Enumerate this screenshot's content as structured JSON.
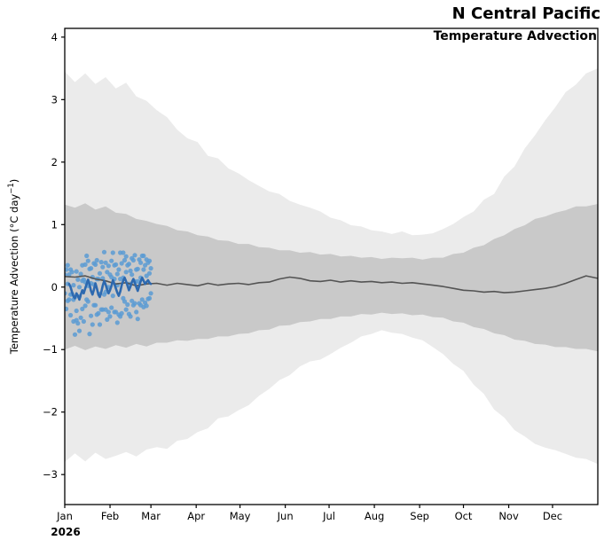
{
  "header": {
    "title": "N Central Pacific",
    "subtitle": "Temperature Advection"
  },
  "chart_data": {
    "type": "line",
    "title": "N Central Pacific",
    "subtitle": "Temperature Advection",
    "ylabel_pre": "Temperature Advection (°C day",
    "ylabel_sup": "−1",
    "ylabel_post": ")",
    "year_label": "2026",
    "x_tick_labels": [
      "Jan",
      "Feb",
      "Mar",
      "Apr",
      "May",
      "Jun",
      "Jul",
      "Aug",
      "Sep",
      "Oct",
      "Nov",
      "Dec"
    ],
    "month_start_days": [
      0,
      31,
      59,
      90,
      120,
      151,
      181,
      212,
      243,
      273,
      304,
      334
    ],
    "days_in_year": 365,
    "ylim": [
      -3.48,
      4.14
    ],
    "yticks": [
      -3,
      -2,
      -1,
      0,
      1,
      2,
      3,
      4
    ],
    "grid": false,
    "legend": "none",
    "colors": {
      "outer_band": "#ebebeb",
      "inner_band": "#c9c9c9",
      "climatology": "#545454",
      "observed": "#2d69af",
      "dots": "#5b9bd4",
      "axis": "#000000",
      "background": "#ffffff"
    },
    "band_days": [
      0,
      7,
      14,
      21,
      28,
      35,
      42,
      49,
      56,
      63,
      70,
      77,
      84,
      91,
      98,
      105,
      112,
      119,
      126,
      133,
      140,
      147,
      154,
      161,
      168,
      175,
      182,
      189,
      196,
      203,
      210,
      217,
      224,
      231,
      238,
      245,
      252,
      259,
      266,
      273,
      280,
      287,
      294,
      301,
      308,
      315,
      322,
      329,
      336,
      343,
      350,
      357,
      365
    ],
    "series": [
      {
        "name": "envelope_outer",
        "type": "band",
        "upper": [
          3.45,
          3.28,
          3.42,
          3.25,
          3.36,
          3.18,
          3.27,
          3.05,
          2.98,
          2.83,
          2.72,
          2.52,
          2.38,
          2.32,
          2.1,
          2.06,
          1.9,
          1.82,
          1.71,
          1.62,
          1.53,
          1.49,
          1.38,
          1.32,
          1.27,
          1.21,
          1.11,
          1.07,
          0.99,
          0.97,
          0.91,
          0.89,
          0.85,
          0.89,
          0.83,
          0.84,
          0.86,
          0.93,
          1.01,
          1.12,
          1.21,
          1.4,
          1.49,
          1.77,
          1.93,
          2.22,
          2.43,
          2.67,
          2.88,
          3.12,
          3.24,
          3.42,
          3.5
        ],
        "lower": [
          -2.8,
          -2.66,
          -2.79,
          -2.65,
          -2.75,
          -2.7,
          -2.64,
          -2.71,
          -2.6,
          -2.56,
          -2.59,
          -2.46,
          -2.43,
          -2.32,
          -2.26,
          -2.1,
          -2.07,
          -1.97,
          -1.89,
          -1.74,
          -1.63,
          -1.49,
          -1.41,
          -1.27,
          -1.19,
          -1.16,
          -1.07,
          -0.97,
          -0.89,
          -0.79,
          -0.75,
          -0.69,
          -0.73,
          -0.75,
          -0.81,
          -0.85,
          -0.96,
          -1.07,
          -1.23,
          -1.34,
          -1.56,
          -1.71,
          -1.96,
          -2.09,
          -2.29,
          -2.39,
          -2.51,
          -2.57,
          -2.61,
          -2.67,
          -2.73,
          -2.75,
          -2.83
        ]
      },
      {
        "name": "envelope_inner",
        "type": "band",
        "upper": [
          1.32,
          1.27,
          1.34,
          1.24,
          1.29,
          1.19,
          1.17,
          1.09,
          1.06,
          1.01,
          0.98,
          0.91,
          0.89,
          0.83,
          0.81,
          0.75,
          0.74,
          0.69,
          0.69,
          0.64,
          0.63,
          0.59,
          0.59,
          0.55,
          0.56,
          0.52,
          0.53,
          0.49,
          0.5,
          0.47,
          0.48,
          0.45,
          0.47,
          0.46,
          0.47,
          0.44,
          0.47,
          0.47,
          0.53,
          0.55,
          0.63,
          0.67,
          0.77,
          0.83,
          0.93,
          0.99,
          1.09,
          1.13,
          1.19,
          1.23,
          1.29,
          1.29,
          1.33
        ],
        "lower": [
          -1.0,
          -0.94,
          -1.01,
          -0.95,
          -0.99,
          -0.93,
          -0.97,
          -0.91,
          -0.95,
          -0.89,
          -0.89,
          -0.85,
          -0.86,
          -0.83,
          -0.83,
          -0.79,
          -0.79,
          -0.75,
          -0.74,
          -0.69,
          -0.68,
          -0.62,
          -0.61,
          -0.56,
          -0.55,
          -0.51,
          -0.51,
          -0.47,
          -0.47,
          -0.43,
          -0.44,
          -0.41,
          -0.43,
          -0.42,
          -0.45,
          -0.44,
          -0.48,
          -0.49,
          -0.55,
          -0.57,
          -0.64,
          -0.67,
          -0.74,
          -0.77,
          -0.84,
          -0.86,
          -0.91,
          -0.92,
          -0.96,
          -0.96,
          -0.99,
          -0.99,
          -1.03
        ]
      },
      {
        "name": "climatology",
        "type": "line",
        "values": [
          0.17,
          0.16,
          0.18,
          0.13,
          0.1,
          0.05,
          0.07,
          0.02,
          0.05,
          0.06,
          0.03,
          0.06,
          0.04,
          0.02,
          0.06,
          0.03,
          0.05,
          0.06,
          0.04,
          0.07,
          0.08,
          0.13,
          0.16,
          0.14,
          0.1,
          0.09,
          0.11,
          0.08,
          0.1,
          0.08,
          0.09,
          0.07,
          0.08,
          0.06,
          0.07,
          0.05,
          0.03,
          0.01,
          -0.02,
          -0.05,
          -0.06,
          -0.08,
          -0.07,
          -0.09,
          -0.08,
          -0.06,
          -0.04,
          -0.02,
          0.01,
          0.06,
          0.12,
          0.18,
          0.14
        ]
      },
      {
        "name": "observed_daily",
        "type": "line",
        "start_day": 3,
        "values": [
          0.05,
          0.0,
          -0.08,
          -0.15,
          -0.18,
          -0.1,
          -0.14,
          -0.2,
          -0.12,
          -0.05,
          -0.1,
          -0.02,
          0.05,
          0.12,
          0.04,
          -0.06,
          -0.12,
          -0.04,
          0.06,
          -0.02,
          -0.12,
          -0.16,
          -0.08,
          0.02,
          0.1,
          0.04,
          -0.04,
          -0.1,
          -0.05,
          0.02,
          0.11,
          0.05,
          -0.02,
          -0.09,
          -0.14,
          -0.07,
          0.03,
          0.1,
          0.15,
          0.09,
          0.02,
          -0.05,
          0.01,
          0.08,
          0.13,
          0.07,
          0.0,
          -0.06,
          0.02,
          0.09,
          0.15,
          0.1,
          0.05,
          0.08,
          0.11,
          0.07,
          0.05
        ]
      },
      {
        "name": "observations",
        "type": "scatter",
        "points": [
          [
            0,
            0.2
          ],
          [
            0,
            -0.1
          ],
          [
            1,
            0.28
          ],
          [
            1,
            -0.35
          ],
          [
            2,
            0.05
          ],
          [
            2,
            -0.22
          ],
          [
            2,
            0.35
          ],
          [
            3,
            -0.2
          ],
          [
            3,
            0.2
          ],
          [
            4,
            0.28
          ],
          [
            4,
            -0.12
          ],
          [
            4,
            -0.45
          ],
          [
            5,
            0.24
          ],
          [
            5,
            -0.11
          ],
          [
            6,
            -0.55
          ],
          [
            6,
            0.03
          ],
          [
            6,
            -0.2
          ],
          [
            7,
            -0.76
          ],
          [
            7,
            -0.16
          ],
          [
            8,
            0.25
          ],
          [
            8,
            -0.38
          ],
          [
            8,
            -0.53
          ],
          [
            9,
            0.12
          ],
          [
            9,
            -0.58
          ],
          [
            10,
            0.0
          ],
          [
            10,
            -0.7
          ],
          [
            10,
            -0.15
          ],
          [
            11,
            0.21
          ],
          [
            11,
            -0.49
          ],
          [
            12,
            0.35
          ],
          [
            12,
            -0.35
          ],
          [
            12,
            0.1
          ],
          [
            13,
            -0.55
          ],
          [
            13,
            0.12
          ],
          [
            14,
            0.36
          ],
          [
            14,
            -0.3
          ],
          [
            14,
            0.08
          ],
          [
            15,
            0.5
          ],
          [
            15,
            -0.2
          ],
          [
            16,
            0.42
          ],
          [
            16,
            -0.23
          ],
          [
            16,
            0.02
          ],
          [
            17,
            -0.75
          ],
          [
            17,
            0.29
          ],
          [
            18,
            0.3
          ],
          [
            18,
            -0.46
          ],
          [
            18,
            0.06
          ],
          [
            19,
            -0.6
          ],
          [
            19,
            0.16
          ],
          [
            20,
            0.38
          ],
          [
            20,
            -0.29
          ],
          [
            20,
            0.04
          ],
          [
            21,
            -0.29
          ],
          [
            21,
            0.36
          ],
          [
            22,
            0.43
          ],
          [
            22,
            -0.44
          ],
          [
            22,
            0.13
          ],
          [
            23,
            -0.42
          ],
          [
            23,
            0.13
          ],
          [
            24,
            0.22
          ],
          [
            24,
            -0.6
          ],
          [
            24,
            -0.11
          ],
          [
            25,
            0.4
          ],
          [
            25,
            -0.36
          ],
          [
            26,
            -0.36
          ],
          [
            26,
            0.32
          ],
          [
            26,
            0.14
          ],
          [
            27,
            0.56
          ],
          [
            27,
            -0.12
          ],
          [
            28,
            0.39
          ],
          [
            28,
            -0.36
          ],
          [
            28,
            -0.08
          ],
          [
            29,
            0.24
          ],
          [
            29,
            -0.52
          ],
          [
            30,
            0.34
          ],
          [
            30,
            -0.4
          ],
          [
            30,
            0.0
          ],
          [
            31,
            -0.47
          ],
          [
            31,
            0.2
          ],
          [
            32,
            0.42
          ],
          [
            32,
            -0.33
          ],
          [
            32,
            0.16
          ],
          [
            33,
            0.55
          ],
          [
            33,
            -0.14
          ],
          [
            34,
            -0.4
          ],
          [
            34,
            0.35
          ],
          [
            34,
            0.13
          ],
          [
            35,
            0.36
          ],
          [
            35,
            -0.4
          ],
          [
            36,
            0.21
          ],
          [
            36,
            -0.57
          ],
          [
            36,
            0.03
          ],
          [
            37,
            0.28
          ],
          [
            37,
            -0.44
          ],
          [
            38,
            0.55
          ],
          [
            38,
            -0.47
          ],
          [
            38,
            0.13
          ],
          [
            39,
            0.38
          ],
          [
            39,
            -0.42
          ],
          [
            40,
            0.55
          ],
          [
            40,
            -0.18
          ],
          [
            40,
            0.15
          ],
          [
            41,
            -0.23
          ],
          [
            41,
            0.43
          ],
          [
            42,
            0.49
          ],
          [
            42,
            -0.36
          ],
          [
            42,
            0.24
          ],
          [
            43,
            -0.28
          ],
          [
            43,
            0.35
          ],
          [
            44,
            0.37
          ],
          [
            44,
            -0.43
          ],
          [
            44,
            0.05
          ],
          [
            45,
            -0.47
          ],
          [
            45,
            0.26
          ],
          [
            46,
            0.46
          ],
          [
            46,
            -0.22
          ],
          [
            46,
            0.2
          ],
          [
            47,
            0.43
          ],
          [
            47,
            -0.29
          ],
          [
            48,
            0.51
          ],
          [
            48,
            -0.26
          ],
          [
            48,
            0.09
          ],
          [
            49,
            -0.4
          ],
          [
            49,
            0.28
          ],
          [
            50,
            0.29
          ],
          [
            50,
            -0.51
          ],
          [
            50,
            0.09
          ],
          [
            51,
            0.44
          ],
          [
            51,
            -0.26
          ],
          [
            52,
            -0.29
          ],
          [
            52,
            0.39
          ],
          [
            52,
            0.15
          ],
          [
            53,
            0.5
          ],
          [
            53,
            -0.2
          ],
          [
            54,
            0.5
          ],
          [
            54,
            -0.32
          ],
          [
            54,
            0.28
          ],
          [
            55,
            -0.25
          ],
          [
            55,
            0.35
          ],
          [
            56,
            0.44
          ],
          [
            56,
            -0.3
          ],
          [
            56,
            0.18
          ],
          [
            57,
            0.39
          ],
          [
            57,
            -0.19
          ],
          [
            58,
            0.42
          ],
          [
            58,
            -0.18
          ],
          [
            58,
            0.22
          ],
          [
            59,
            0.3
          ],
          [
            59,
            -0.1
          ]
        ]
      }
    ],
    "layout": {
      "plot_left": 73,
      "plot_top": 32,
      "plot_right": 674,
      "plot_bottom": 569
    }
  }
}
